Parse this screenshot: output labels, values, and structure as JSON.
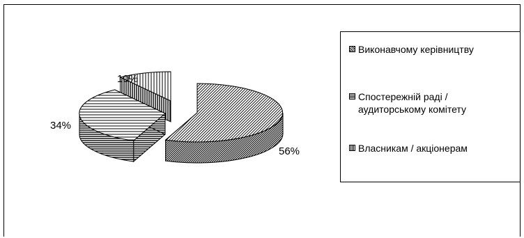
{
  "chart_data": {
    "type": "pie",
    "style": "3d-exploded",
    "categories": [
      "Виконавчому керівництву",
      "Спостережній раді / аудиторському комітету",
      "Власникам / акціонерам"
    ],
    "values": [
      56,
      34,
      10
    ],
    "data_labels": [
      "56%",
      "34%",
      "10%"
    ],
    "legend_placement": "right",
    "legend_labels": [
      "Виконавчому керівництву",
      "Спостережній раді /\nаудиторському комітету",
      "Власникам / акціонерам"
    ],
    "patterns": [
      "diagonal-hatch",
      "horizontal-stripes",
      "vertical-stripes"
    ]
  }
}
